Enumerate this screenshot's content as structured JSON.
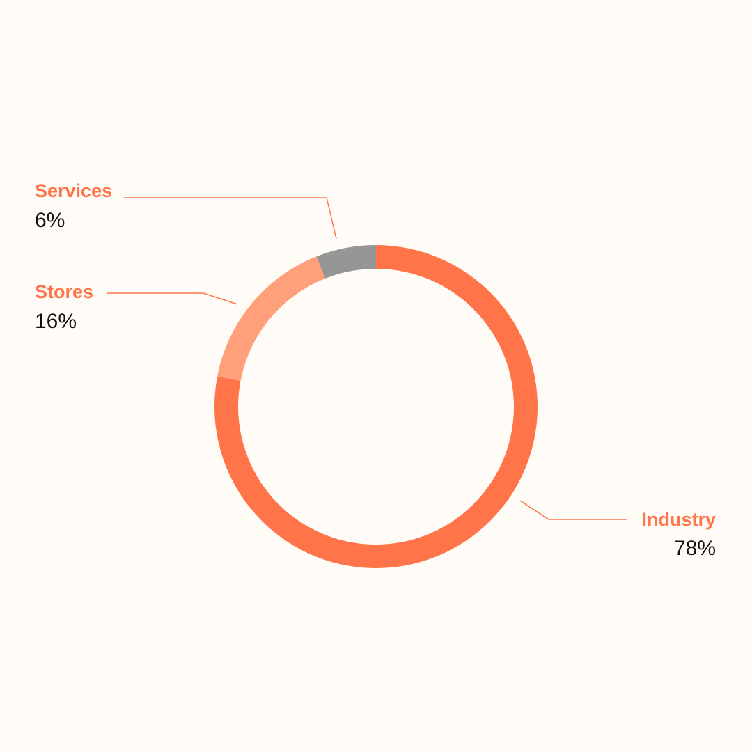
{
  "chart_data": {
    "type": "pie",
    "variant": "donut",
    "categories": [
      "Industry",
      "Stores",
      "Services"
    ],
    "values": [
      78,
      16,
      6
    ],
    "value_labels": [
      "78%",
      "16%",
      "6%"
    ],
    "colors": [
      "#ff7448",
      "#ffa07a",
      "#969696"
    ],
    "label_color": "#ff7448",
    "start_angle_deg": 0,
    "direction": "clockwise"
  }
}
